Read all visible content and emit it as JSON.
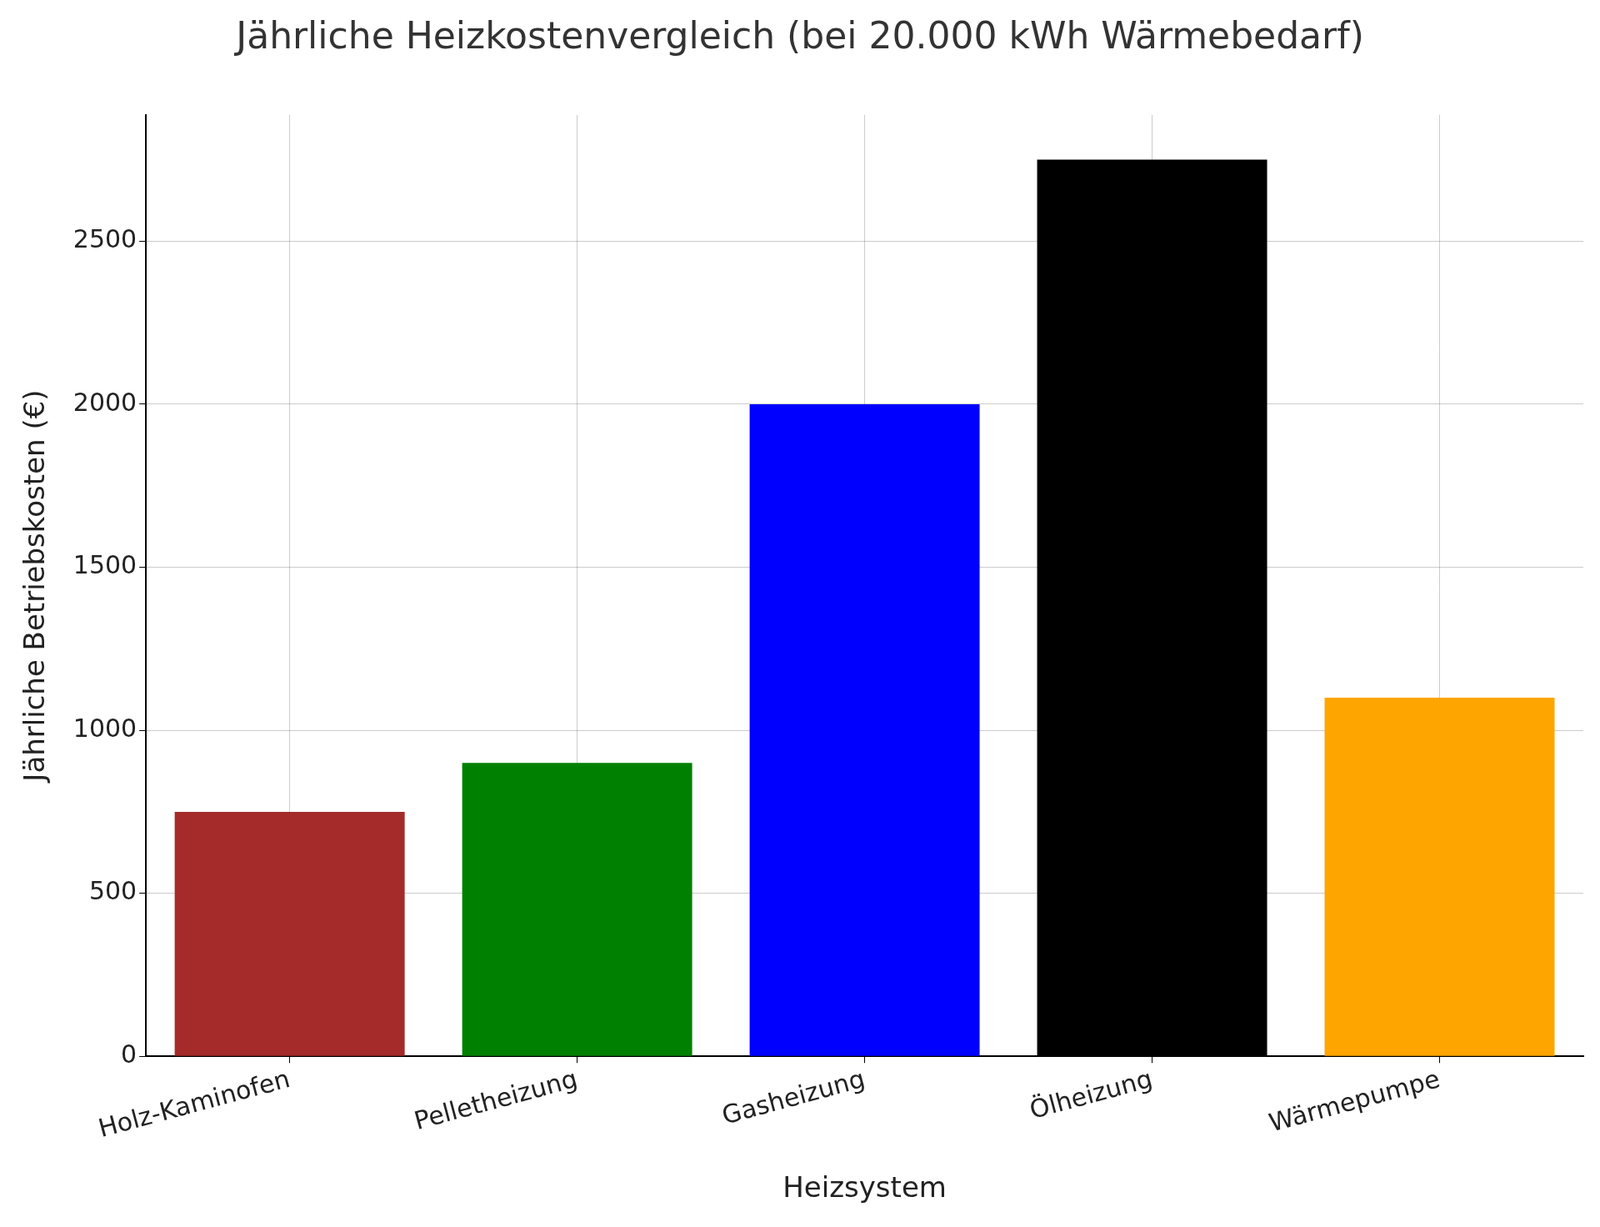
{
  "chart_data": {
    "type": "bar",
    "title": "Jährliche Heizkostenvergleich (bei 20.000 kWh Wärmebedarf)",
    "x_label": "Heizsystem",
    "y_label": "Jährliche Betriebskosten (€)",
    "categories": [
      "Holz-Kaminofen",
      "Pelletheizung",
      "Gasheizung",
      "Ölheizung",
      "Wärmepumpe"
    ],
    "values": [
      750,
      900,
      2000,
      2750,
      1100
    ],
    "colors": [
      "#a52a2a",
      "#008000",
      "#0000ff",
      "#000000",
      "#ffa500"
    ],
    "ylim": [
      0,
      2887.5
    ],
    "yticks": [
      0,
      500,
      1000,
      1500,
      2000,
      2500
    ],
    "grid": true
  }
}
